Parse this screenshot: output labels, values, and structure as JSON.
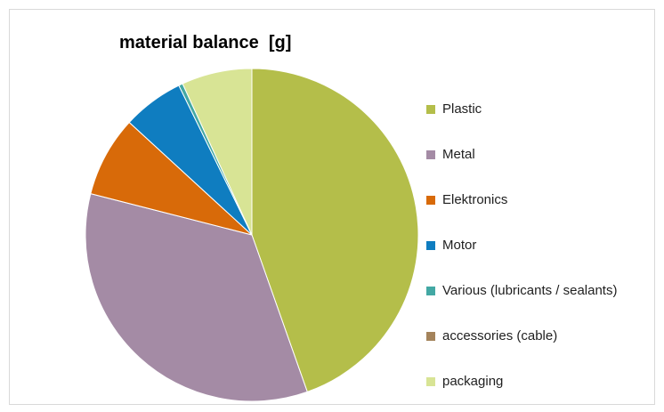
{
  "chart_data": {
    "type": "pie",
    "title": "material balance  [g]",
    "categories": [
      "Plastic",
      "Metal",
      "Elektronics",
      "Motor",
      "Various (lubricants / sealants)",
      "accessories (cable)",
      "packaging"
    ],
    "values": [
      45.0,
      34.7,
      7.9,
      6.0,
      0.4,
      0.0,
      6.9
    ],
    "colors": [
      "#b4be4a",
      "#a48ba5",
      "#d86a09",
      "#0f7dc0",
      "#43a8a4",
      "#a4835b",
      "#d8e495"
    ],
    "legend_position": "right"
  }
}
